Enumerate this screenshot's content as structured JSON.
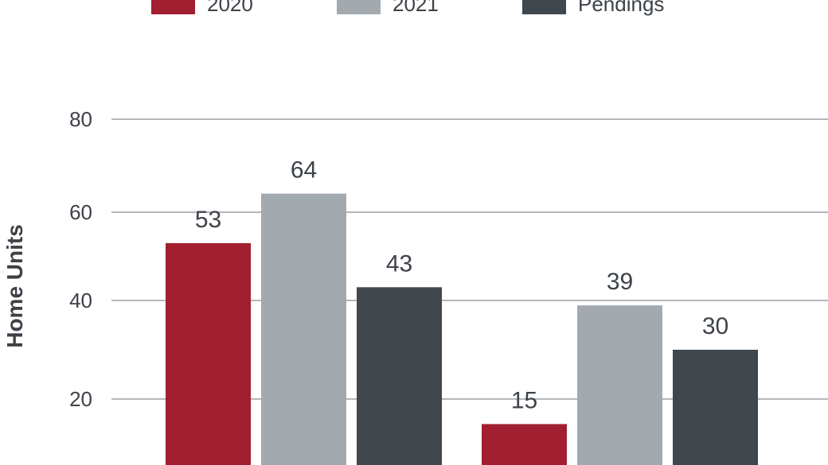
{
  "chart_data": {
    "type": "bar",
    "ylabel": "Home Units",
    "yticks": [
      20,
      40,
      60,
      80
    ],
    "ylim": [
      0,
      80
    ],
    "grid": true,
    "legend_position": "top",
    "categories": [
      "",
      ""
    ],
    "series": [
      {
        "name": "2020",
        "color": "#a11f30",
        "values": [
          53,
          15
        ]
      },
      {
        "name": "2021",
        "color": "#a2aab0",
        "values": [
          64,
          39
        ]
      },
      {
        "name": "Pendings",
        "color": "#40474d",
        "values": [
          43,
          30
        ]
      }
    ]
  }
}
